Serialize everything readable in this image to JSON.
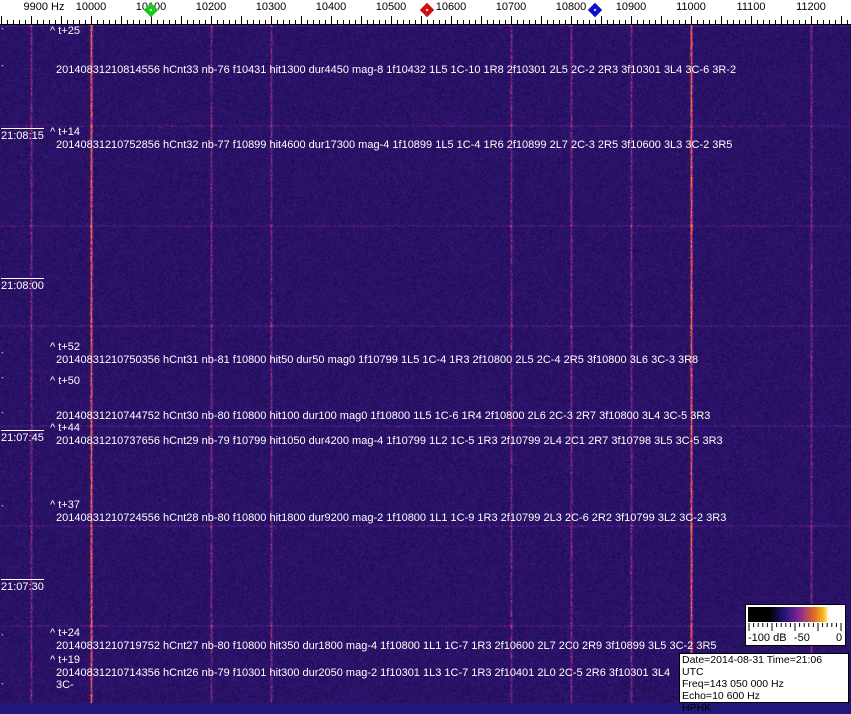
{
  "ruler": {
    "labels": [
      "9900 Hz",
      "10000",
      "10100",
      "10200",
      "10300",
      "10400",
      "10500",
      "10600",
      "10700",
      "10800",
      "10900",
      "11000",
      "11100",
      "11200"
    ],
    "markers": [
      {
        "name": "green",
        "freq_hz": 10100,
        "color": "#1ec81e"
      },
      {
        "name": "red",
        "freq_hz": 10560,
        "color": "#d01010"
      },
      {
        "name": "blue",
        "freq_hz": 10840,
        "color": "#1010c8"
      }
    ]
  },
  "waterfall": {
    "background_color": "#22187a",
    "carrier_lines_hz": [
      9900,
      10000,
      10200,
      10300,
      10700,
      10800,
      10900,
      11000,
      11200
    ],
    "times": [
      "21:08:15",
      "21:08:00",
      "21:07:45",
      "21:07:30"
    ],
    "t_markers": [
      "^ t+25",
      "^ t+14",
      "^ t+52",
      "^ t+50",
      "^ t+44",
      "^ t+37",
      "^ t+24",
      "^ t+19"
    ],
    "detections": [
      "20140831210814556 hCnt33 nb-76 f10431 hit1300 dur4450 mag-8 1f10432 1L5 1C-10 1R8 2f10301 2L5 2C-2 2R3 3f10301 3L4 3C-6 3R-2",
      "20140831210752856 hCnt32 nb-77 f10899 hit4600 dur17300 mag-4 1f10899 1L5 1C-4 1R6 2f10899 2L7 2C-3 2R5 3f10600 3L3 3C-2 3R5",
      "20140831210750356 hCnt31 nb-81 f10800 hit50 dur50 mag0 1f10799 1L5 1C-4 1R3 2f10800 2L5 2C-4 2R5 3f10800 3L6 3C-3 3R8",
      "20140831210744752 hCnt30 nb-80 f10800 hit100 dur100 mag0 1f10800 1L5 1C-6 1R4 2f10800 2L6 2C-3 2R7 3f10800 3L4 3C-5 3R3",
      "20140831210737656 hCnt29 nb-79 f10799 hit1050 dur4200 mag-4 1f10799 1L2 1C-5 1R3 2f10799 2L4 2C1 2R7 3f10798 3L5 3C-5 3R3",
      "20140831210724556 hCnt28 nb-80 f10800 hit1800 dur9200 mag-2 1f10800 1L1 1C-9 1R3 2f10799 2L3 2C-6 2R2 3f10799 3L2 3C-2 3R3",
      "20140831210719752 hCnt27 nb-80 f10800 hit350 dur1800 mag-4 1f10800 1L1 1C-7 1R3 2f10600 2L7 2C0 2R9 3f10899 3L5 3C-2 3R5",
      "20140831210714356 hCnt26 nb-79 f10301 hit300 dur2050 mag-2 1f10301 1L3 1C-7 1R3 2f10401 2L0 2C-5 2R6 3f10301 3L4 3C-"
    ]
  },
  "color_scale": {
    "labels": [
      "-100 dB",
      "-50",
      "0"
    ]
  },
  "info": {
    "date_line": "Date=2014-08-31 Time=21:06 UTC",
    "freq_line": "Freq=143 050 000 Hz",
    "echo_line": "Echo=10 600 Hz",
    "station": "HPHK"
  }
}
